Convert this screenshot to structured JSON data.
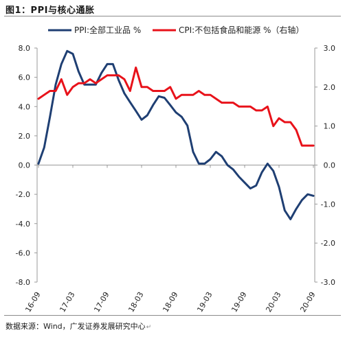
{
  "header": {
    "title": "图1：PPI与核心通胀"
  },
  "footer": {
    "source": "数据来源：Wind，广发证券发展研究中心"
  },
  "chart_data": {
    "type": "line",
    "x": [
      "16-09",
      "16-10",
      "16-11",
      "16-12",
      "17-01",
      "17-02",
      "17-03",
      "17-04",
      "17-05",
      "17-06",
      "17-07",
      "17-08",
      "17-09",
      "17-10",
      "17-11",
      "17-12",
      "18-01",
      "18-02",
      "18-03",
      "18-04",
      "18-05",
      "18-06",
      "18-07",
      "18-08",
      "18-09",
      "18-10",
      "18-11",
      "18-12",
      "19-01",
      "19-02",
      "19-03",
      "19-04",
      "19-05",
      "19-06",
      "19-07",
      "19-08",
      "19-09",
      "19-10",
      "19-11",
      "19-12",
      "20-01",
      "20-02",
      "20-03",
      "20-04",
      "20-05",
      "20-06",
      "20-07",
      "20-08",
      "20-09"
    ],
    "x_tick_labels": [
      "16-09",
      "17-03",
      "17-09",
      "18-03",
      "18-09",
      "19-03",
      "19-09",
      "20-03",
      "20-09"
    ],
    "series": [
      {
        "name": "PPI:全部工业品 %",
        "axis": "left",
        "color": "#1f3f73",
        "values": [
          0.1,
          1.2,
          3.3,
          5.5,
          6.9,
          7.8,
          7.6,
          6.4,
          5.5,
          5.5,
          5.5,
          6.3,
          6.9,
          6.9,
          5.8,
          4.9,
          4.3,
          3.7,
          3.1,
          3.4,
          4.1,
          4.7,
          4.6,
          4.1,
          3.6,
          3.3,
          2.7,
          0.9,
          0.1,
          0.1,
          0.4,
          0.9,
          0.6,
          0.0,
          -0.3,
          -0.8,
          -1.2,
          -1.6,
          -1.4,
          -0.5,
          0.1,
          -0.4,
          -1.5,
          -3.1,
          -3.7,
          -3.0,
          -2.4,
          -2.0,
          -2.1
        ]
      },
      {
        "name": "CPI:不包括食品和能源 %（右轴）",
        "axis": "right",
        "color": "#e8121a",
        "values": [
          1.7,
          1.8,
          1.9,
          1.9,
          2.2,
          1.8,
          2.0,
          2.1,
          2.1,
          2.2,
          2.1,
          2.2,
          2.3,
          2.3,
          2.3,
          2.2,
          1.9,
          2.5,
          2.0,
          2.0,
          1.9,
          1.9,
          1.9,
          2.0,
          1.7,
          1.8,
          1.8,
          1.8,
          1.9,
          1.8,
          1.8,
          1.7,
          1.6,
          1.6,
          1.6,
          1.5,
          1.5,
          1.5,
          1.4,
          1.4,
          1.5,
          1.0,
          1.2,
          1.1,
          1.1,
          0.9,
          0.5,
          0.5,
          0.5
        ]
      }
    ],
    "y_left": {
      "lim": [
        -8,
        8
      ],
      "ticks": [
        "8.0",
        "6.0",
        "4.0",
        "2.0",
        "0.0",
        "-2.0",
        "-4.0",
        "-6.0",
        "-8.0"
      ]
    },
    "y_right": {
      "lim": [
        -3,
        3
      ],
      "ticks": [
        "3.0",
        "2.0",
        "1.0",
        "0.0",
        "-1.0",
        "-2.0",
        "-3.0"
      ]
    },
    "grid": false,
    "legend_position": "top"
  }
}
